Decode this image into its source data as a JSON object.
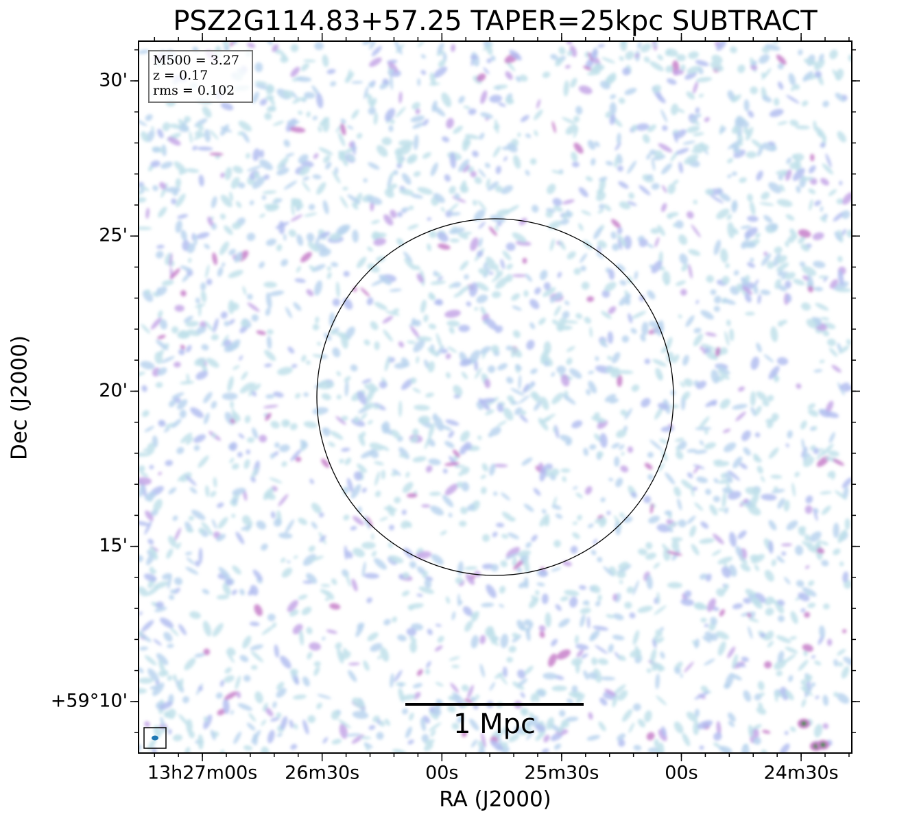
{
  "chart_data": {
    "type": "image",
    "title": "PSZ2G114.83+57.25 TAPER=25kpc SUBTRACT",
    "xlabel": "RA (J2000)",
    "ylabel": "Dec (J2000)",
    "xlim": [
      48436,
      48257.3
    ],
    "ylim": [
      8.34,
      31.28
    ],
    "xticks": [
      {
        "value": 48420,
        "label": "13h27m00s"
      },
      {
        "value": 48390,
        "label": "26m30s"
      },
      {
        "value": 48360,
        "label": "00s"
      },
      {
        "value": 48330,
        "label": "25m30s"
      },
      {
        "value": 48300,
        "label": "00s"
      },
      {
        "value": 48270,
        "label": "24m30s"
      }
    ],
    "yticks": [
      {
        "value": 30,
        "label": "30'"
      },
      {
        "value": 25,
        "label": "25'"
      },
      {
        "value": 20,
        "label": "20'"
      },
      {
        "value": 15,
        "label": "15'"
      },
      {
        "value": 10,
        "label": "+59°10'"
      }
    ],
    "annotations": [
      "M500 = 3.27",
      "z = 0.17",
      "rms = 0.102"
    ],
    "scale_bar_label": "1 Mpc"
  }
}
